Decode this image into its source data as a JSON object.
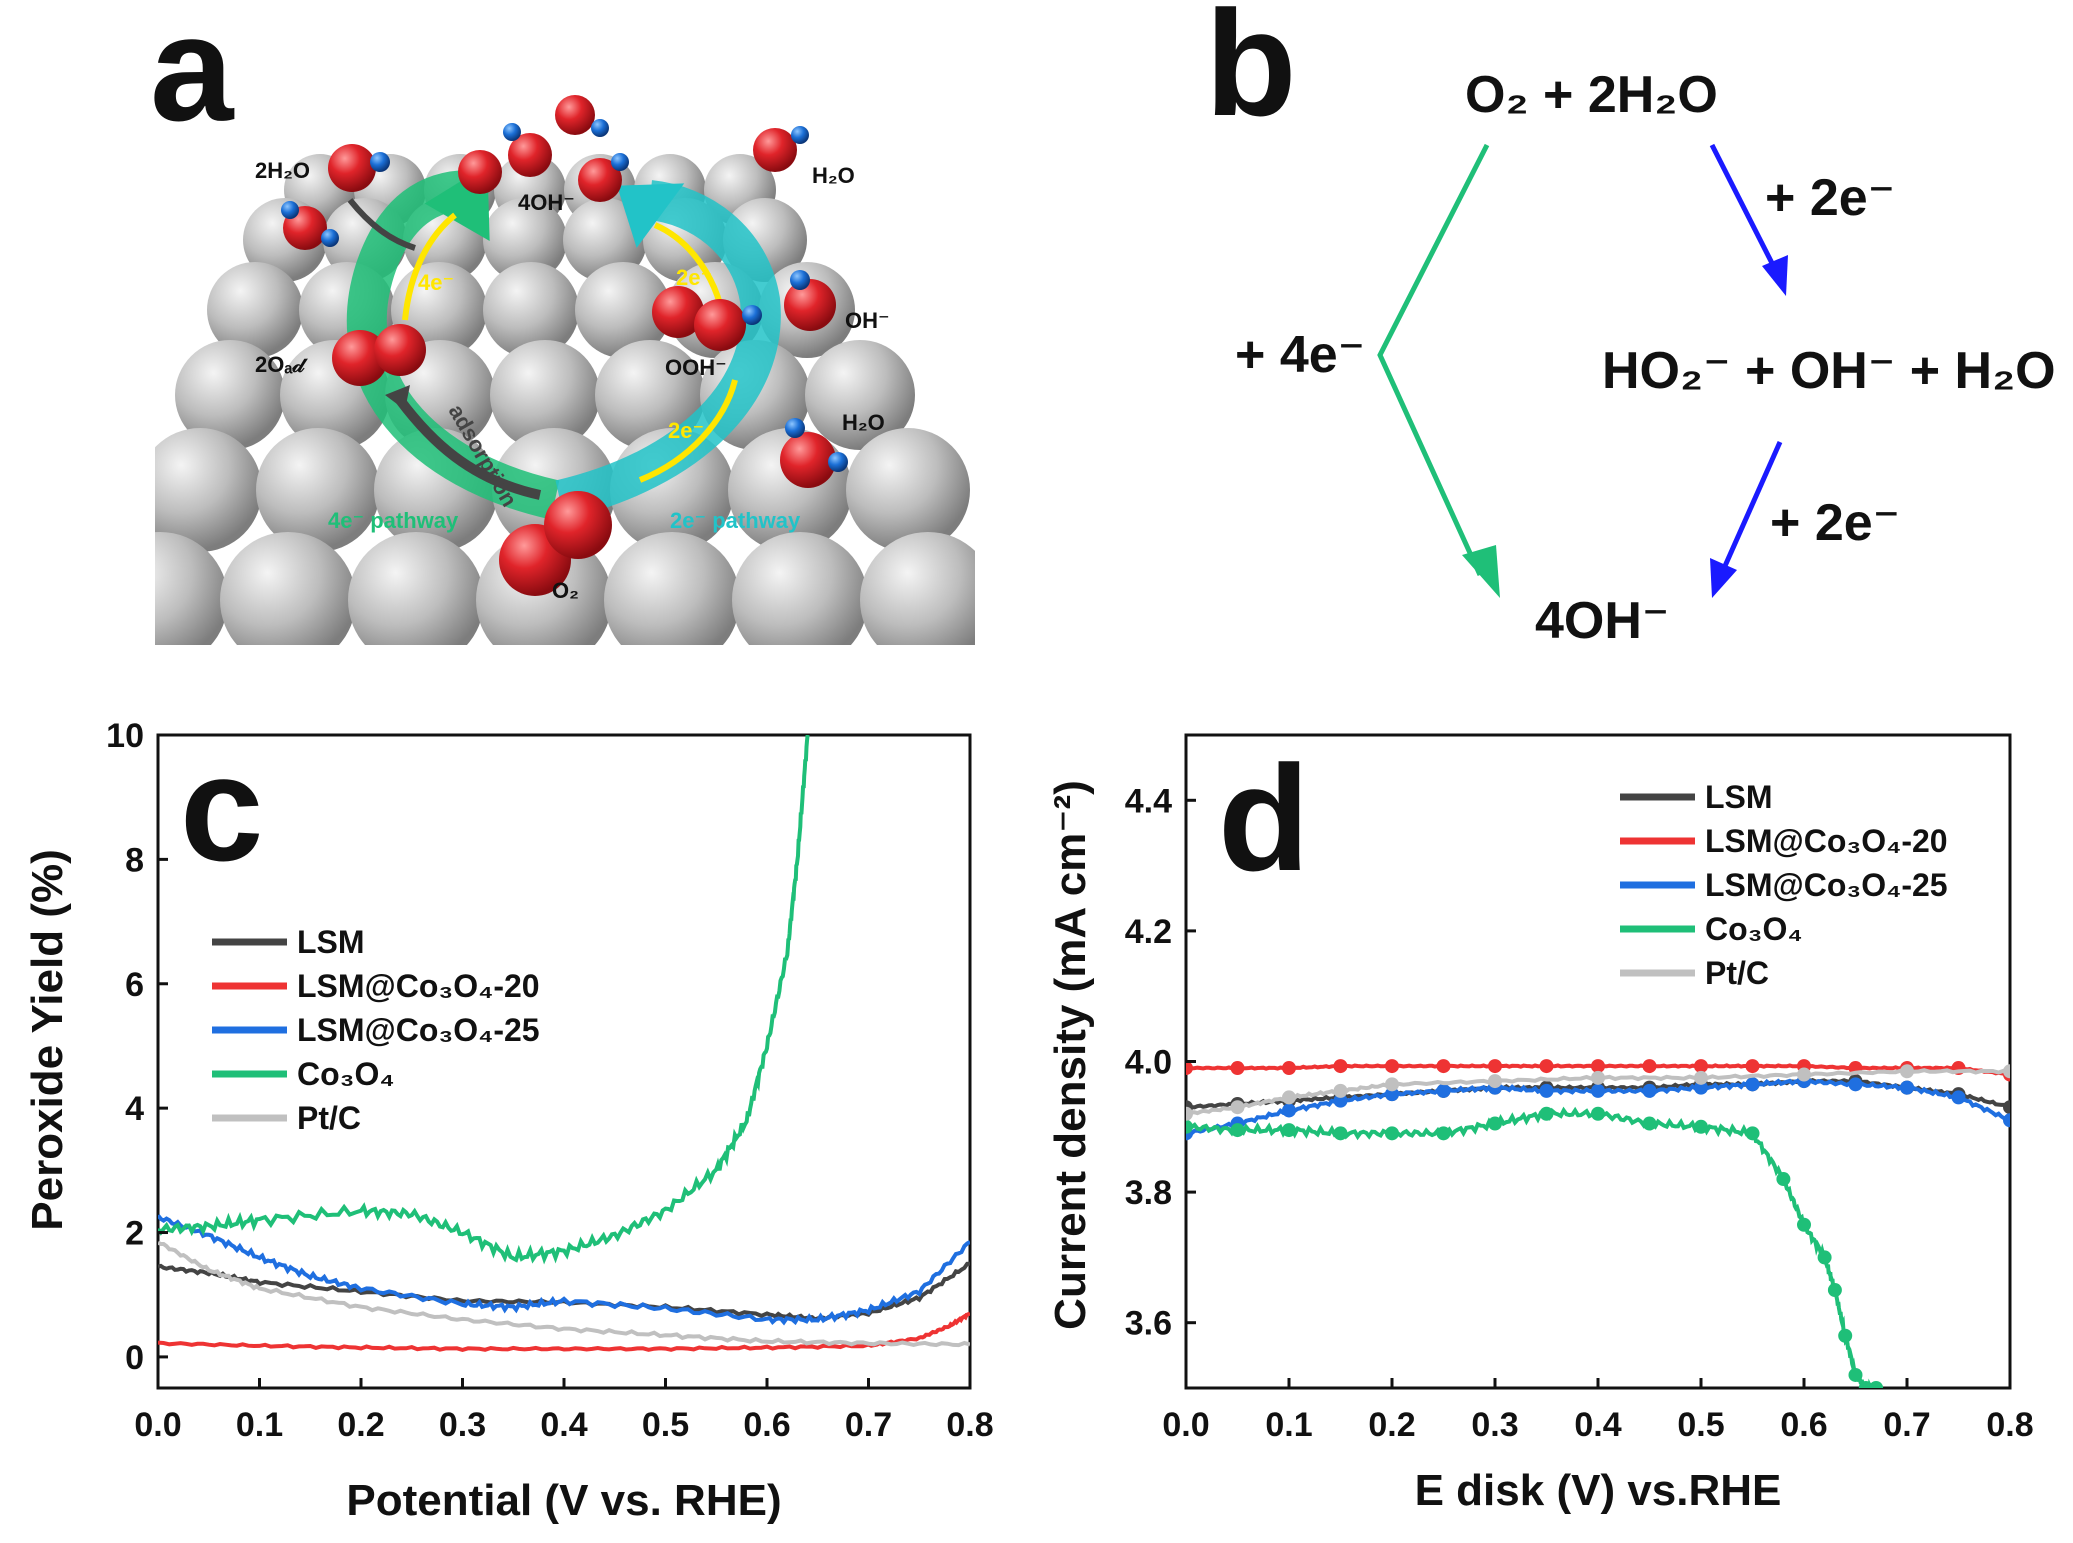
{
  "panels": {
    "a": {
      "letter": "a",
      "labels": {
        "h2o_left": "2H₂O",
        "oh4": "4OH⁻",
        "h2o_right_top": "H₂O",
        "four_e": "4e⁻",
        "two_e_top": "2e⁻",
        "oh": "OH⁻",
        "two_o_ad": "2Oₐ𝒹",
        "ooh": "OOH⁻",
        "adsorption": "adsorption",
        "two_e_bottom": "2e⁻",
        "h2o_right_mid": "H₂O",
        "pathway_4e": "4e⁻ pathway",
        "pathway_2e": "2e⁻ pathway",
        "o2": "O₂"
      }
    },
    "b": {
      "letter": "b",
      "reactant": "O₂ + 2H₂O",
      "step_2e_first": "+ 2e⁻",
      "step_4e": "+ 4e⁻",
      "intermediate": "HO₂⁻ + OH⁻ + H₂O",
      "step_2e_second": "+ 2e⁻",
      "product": "4OH⁻",
      "colors": {
        "direct": "#1fbf78",
        "indirect": "#1a1aff"
      }
    }
  },
  "chart_data": [
    {
      "panel": "c",
      "letter": "c",
      "type": "line",
      "xlabel": "Potential (V vs. RHE)",
      "ylabel": "Peroxide Yield   (%)",
      "xlim": [
        0.0,
        0.8
      ],
      "ylim": [
        -0.5,
        10
      ],
      "xticks": [
        "0.0",
        "0.1",
        "0.2",
        "0.3",
        "0.4",
        "0.5",
        "0.6",
        "0.7",
        "0.8"
      ],
      "yticks": [
        "0",
        "2",
        "4",
        "6",
        "8",
        "10"
      ],
      "legend_position": "left",
      "series": [
        {
          "name": "LSM",
          "color": "#444444",
          "x": [
            0,
            0.05,
            0.1,
            0.2,
            0.3,
            0.4,
            0.5,
            0.6,
            0.65,
            0.7,
            0.75,
            0.8
          ],
          "y": [
            1.45,
            1.35,
            1.2,
            1.05,
            0.9,
            0.88,
            0.8,
            0.68,
            0.62,
            0.7,
            0.95,
            1.5
          ]
        },
        {
          "name": "LSM@Co₃O₄-20",
          "color": "#ee3333",
          "x": [
            0,
            0.1,
            0.2,
            0.3,
            0.4,
            0.5,
            0.6,
            0.7,
            0.75,
            0.78,
            0.8
          ],
          "y": [
            0.22,
            0.18,
            0.15,
            0.13,
            0.13,
            0.13,
            0.15,
            0.18,
            0.3,
            0.5,
            0.7
          ]
        },
        {
          "name": "LSM@Co₃O₄-25",
          "color": "#1f6fe0",
          "x": [
            0,
            0.05,
            0.1,
            0.15,
            0.2,
            0.3,
            0.35,
            0.4,
            0.5,
            0.6,
            0.65,
            0.7,
            0.75,
            0.8
          ],
          "y": [
            2.25,
            1.95,
            1.6,
            1.3,
            1.1,
            0.85,
            0.8,
            0.9,
            0.78,
            0.6,
            0.6,
            0.75,
            1.05,
            1.85
          ]
        },
        {
          "name": "Co₃O₄",
          "color": "#1fbf78",
          "x": [
            0,
            0.05,
            0.1,
            0.2,
            0.25,
            0.3,
            0.35,
            0.4,
            0.45,
            0.5,
            0.55,
            0.58,
            0.6,
            0.62,
            0.63,
            0.64
          ],
          "y": [
            2.05,
            2.1,
            2.2,
            2.35,
            2.3,
            2.0,
            1.6,
            1.7,
            1.95,
            2.35,
            3.0,
            3.8,
            5.0,
            6.5,
            8.0,
            10.0
          ]
        },
        {
          "name": "Pt/C",
          "color": "#c0c0c0",
          "x": [
            0,
            0.05,
            0.1,
            0.2,
            0.3,
            0.4,
            0.5,
            0.6,
            0.7,
            0.8
          ],
          "y": [
            1.85,
            1.4,
            1.1,
            0.8,
            0.6,
            0.45,
            0.35,
            0.25,
            0.22,
            0.2
          ]
        }
      ]
    },
    {
      "panel": "d",
      "letter": "d",
      "type": "line",
      "xlabel": "E disk (V) vs.RHE",
      "ylabel": "Current density (mA cm⁻²)",
      "xlim": [
        0.0,
        0.8
      ],
      "ylim": [
        3.5,
        4.5
      ],
      "xticks": [
        "0.0",
        "0.1",
        "0.2",
        "0.3",
        "0.4",
        "0.5",
        "0.6",
        "0.7",
        "0.8"
      ],
      "yticks": [
        "3.6",
        "3.8",
        "4.0",
        "4.2",
        "4.4"
      ],
      "legend_position": "top-right",
      "series": [
        {
          "name": "LSM",
          "color": "#444444",
          "x": [
            0,
            0.05,
            0.1,
            0.15,
            0.2,
            0.25,
            0.3,
            0.35,
            0.4,
            0.45,
            0.5,
            0.55,
            0.6,
            0.65,
            0.7,
            0.75,
            0.8
          ],
          "y": [
            3.93,
            3.935,
            3.94,
            3.945,
            3.95,
            3.955,
            3.96,
            3.96,
            3.96,
            3.96,
            3.965,
            3.965,
            3.97,
            3.97,
            3.96,
            3.95,
            3.93
          ]
        },
        {
          "name": "LSM@Co₃O₄-20",
          "color": "#ee3333",
          "x": [
            0,
            0.05,
            0.1,
            0.15,
            0.2,
            0.25,
            0.3,
            0.35,
            0.4,
            0.45,
            0.5,
            0.55,
            0.6,
            0.65,
            0.7,
            0.75,
            0.8
          ],
          "y": [
            3.99,
            3.99,
            3.99,
            3.993,
            3.993,
            3.993,
            3.993,
            3.993,
            3.993,
            3.993,
            3.993,
            3.993,
            3.993,
            3.99,
            3.99,
            3.99,
            3.98
          ]
        },
        {
          "name": "LSM@Co₃O₄-25",
          "color": "#1f6fe0",
          "x": [
            0,
            0.05,
            0.1,
            0.15,
            0.2,
            0.25,
            0.3,
            0.35,
            0.4,
            0.45,
            0.5,
            0.55,
            0.6,
            0.65,
            0.7,
            0.75,
            0.8
          ],
          "y": [
            3.89,
            3.905,
            3.925,
            3.94,
            3.95,
            3.955,
            3.96,
            3.955,
            3.955,
            3.955,
            3.96,
            3.965,
            3.97,
            3.965,
            3.96,
            3.945,
            3.91
          ]
        },
        {
          "name": "Co₃O₄",
          "color": "#1fbf78",
          "x": [
            0,
            0.05,
            0.1,
            0.15,
            0.2,
            0.25,
            0.3,
            0.35,
            0.4,
            0.45,
            0.5,
            0.55,
            0.58,
            0.6,
            0.62,
            0.63,
            0.64,
            0.65,
            0.66,
            0.67
          ],
          "y": [
            3.9,
            3.895,
            3.895,
            3.89,
            3.89,
            3.89,
            3.905,
            3.92,
            3.92,
            3.905,
            3.9,
            3.89,
            3.82,
            3.75,
            3.7,
            3.65,
            3.58,
            3.52,
            3.5,
            3.5
          ]
        },
        {
          "name": "Pt/C",
          "color": "#c0c0c0",
          "x": [
            0,
            0.05,
            0.1,
            0.15,
            0.2,
            0.3,
            0.4,
            0.5,
            0.6,
            0.7,
            0.8
          ],
          "y": [
            3.92,
            3.93,
            3.945,
            3.955,
            3.965,
            3.97,
            3.975,
            3.975,
            3.98,
            3.985,
            3.985
          ]
        }
      ]
    }
  ]
}
